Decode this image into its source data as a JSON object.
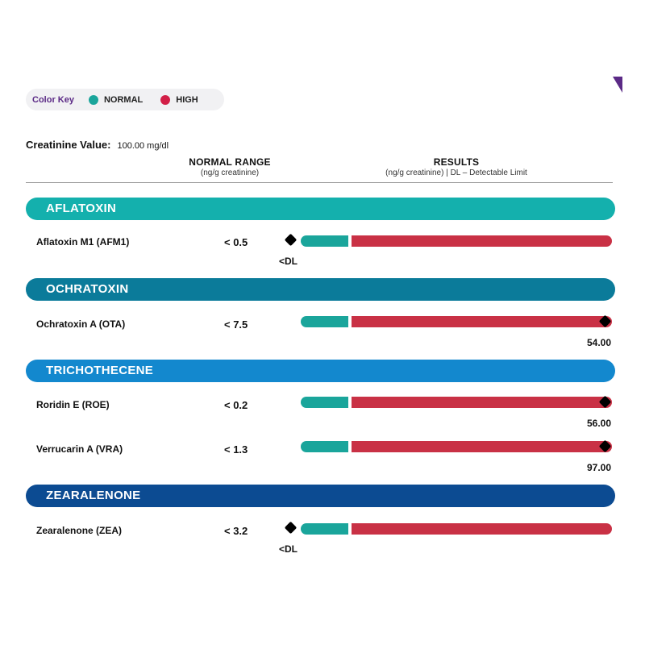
{
  "color_key": {
    "title": "Color Key",
    "items": [
      {
        "label": "NORMAL",
        "color": "#1aa59b"
      },
      {
        "label": "HIGH",
        "color": "#d21f47"
      }
    ]
  },
  "creatinine": {
    "label": "Creatinine Value:",
    "value": "100.00 mg/dl"
  },
  "columns": {
    "range": {
      "title": "NORMAL RANGE",
      "subtitle": "(ng/g creatinine)"
    },
    "results": {
      "title": "RESULTS",
      "subtitle": "(ng/g creatinine) | DL – Detectable Limit"
    }
  },
  "colors": {
    "normal_bar": "#1aa59b",
    "high_bar": "#c93145",
    "accent_corner": "#5b2a86"
  },
  "sections": [
    {
      "name": "AFLATOXIN",
      "color": "#14b0ad",
      "rows": [
        {
          "name": "Aflatoxin M1 (AFM1)",
          "range": "< 0.5",
          "result": "<DL",
          "level": "below"
        }
      ]
    },
    {
      "name": "OCHRATOXIN",
      "color": "#0b7b9a",
      "rows": [
        {
          "name": "Ochratoxin A (OTA)",
          "range": "< 7.5",
          "result": "54.00",
          "level": "high"
        }
      ]
    },
    {
      "name": "TRICHOTHECENE",
      "color": "#1388ce",
      "rows": [
        {
          "name": "Roridin E (ROE)",
          "range": "< 0.2",
          "result": "56.00",
          "level": "high"
        },
        {
          "name": "Verrucarin A (VRA)",
          "range": "< 1.3",
          "result": "97.00",
          "level": "high"
        }
      ]
    },
    {
      "name": "ZEARALENONE",
      "color": "#0c4b92",
      "rows": [
        {
          "name": "Zearalenone (ZEA)",
          "range": "< 3.2",
          "result": "<DL",
          "level": "below"
        }
      ]
    }
  ]
}
